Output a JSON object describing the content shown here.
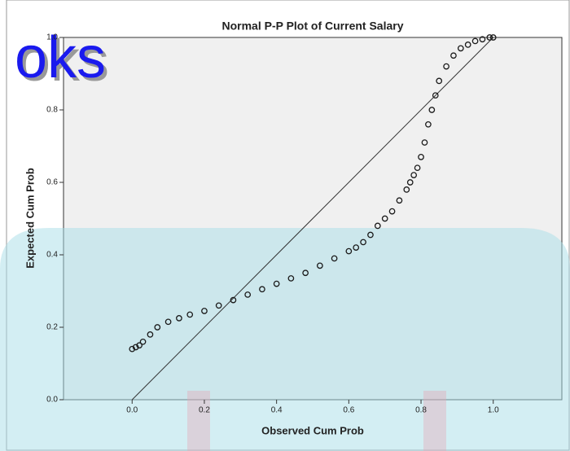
{
  "chart_data": {
    "type": "scatter",
    "title": "Normal P-P Plot of Current Salary",
    "x_label": "Observed Cum Prob",
    "y_label": "Expected Cum Prob",
    "watermark": "oks",
    "x": [
      0,
      0.01,
      0.02,
      0.03,
      0.05,
      0.07,
      0.1,
      0.13,
      0.16,
      0.2,
      0.24,
      0.28,
      0.32,
      0.36,
      0.4,
      0.44,
      0.48,
      0.52,
      0.56,
      0.6,
      0.62,
      0.64,
      0.66,
      0.68,
      0.7,
      0.72,
      0.74,
      0.76,
      0.77,
      0.78,
      0.79,
      0.8,
      0.81,
      0.82,
      0.83,
      0.84,
      0.85,
      0.87,
      0.89,
      0.91,
      0.93,
      0.95,
      0.97,
      0.99,
      1.0
    ],
    "values": [
      0.14,
      0.145,
      0.15,
      0.16,
      0.18,
      0.2,
      0.215,
      0.225,
      0.235,
      0.245,
      0.26,
      0.275,
      0.29,
      0.305,
      0.32,
      0.335,
      0.35,
      0.37,
      0.39,
      0.41,
      0.42,
      0.435,
      0.455,
      0.48,
      0.5,
      0.52,
      0.55,
      0.58,
      0.6,
      0.62,
      0.64,
      0.67,
      0.71,
      0.76,
      0.8,
      0.84,
      0.88,
      0.92,
      0.95,
      0.97,
      0.98,
      0.99,
      0.995,
      1.0,
      1.0
    ],
    "reference_line": {
      "x": [
        0,
        1
      ],
      "y": [
        0,
        1
      ]
    },
    "xlim": [
      -0.19,
      1.19
    ],
    "ylim": [
      0,
      1
    ],
    "xticks": [
      {
        "value": 0,
        "label": "0.0"
      },
      0.2,
      0.4,
      0.6,
      0.8,
      {
        "value": 1,
        "label": "1.0"
      }
    ],
    "yticks": [
      {
        "value": 0,
        "label": "0.0"
      },
      0.2,
      0.4,
      0.6,
      0.8,
      {
        "value": 1,
        "label": "1.0"
      }
    ],
    "color": "#1a1a1a"
  }
}
